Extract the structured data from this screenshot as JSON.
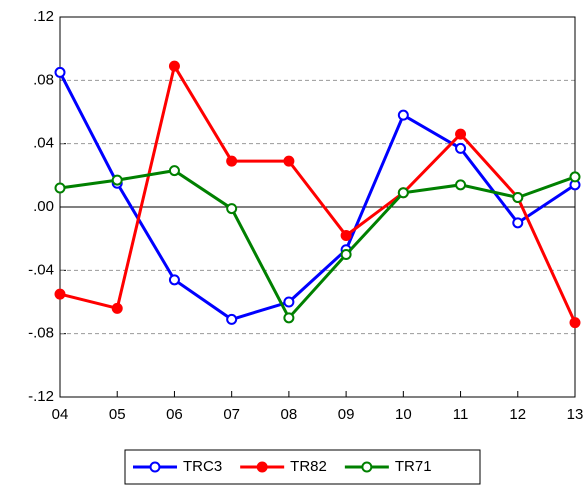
{
  "chart_data": {
    "type": "line",
    "categories": [
      "04",
      "05",
      "06",
      "07",
      "08",
      "09",
      "10",
      "11",
      "12",
      "13"
    ],
    "series": [
      {
        "name": "TRC3",
        "color": "#0000ff",
        "marker": "open",
        "values": [
          0.085,
          0.015,
          -0.046,
          -0.071,
          -0.06,
          -0.027,
          0.058,
          0.037,
          -0.01,
          0.014
        ]
      },
      {
        "name": "TR82",
        "color": "#ff0000",
        "marker": "filled",
        "values": [
          -0.055,
          -0.064,
          0.089,
          0.029,
          0.029,
          -0.018,
          0.009,
          0.046,
          0.006,
          -0.073
        ]
      },
      {
        "name": "TR71",
        "color": "#008000",
        "marker": "open",
        "values": [
          0.012,
          0.017,
          0.023,
          -0.001,
          -0.07,
          -0.03,
          0.009,
          0.014,
          0.006,
          0.019
        ]
      }
    ],
    "ylim": [
      -0.12,
      0.12
    ],
    "yticks": [
      {
        "value": -0.12,
        "label": "-.12"
      },
      {
        "value": -0.08,
        "label": "-.08"
      },
      {
        "value": -0.04,
        "label": "-.04"
      },
      {
        "value": 0,
        "label": ".00"
      },
      {
        "value": 0.04,
        "label": ".04"
      },
      {
        "value": 0.08,
        "label": ".08"
      },
      {
        "value": 0.12,
        "label": ".12"
      }
    ],
    "grid": true,
    "legend": "bottom"
  }
}
